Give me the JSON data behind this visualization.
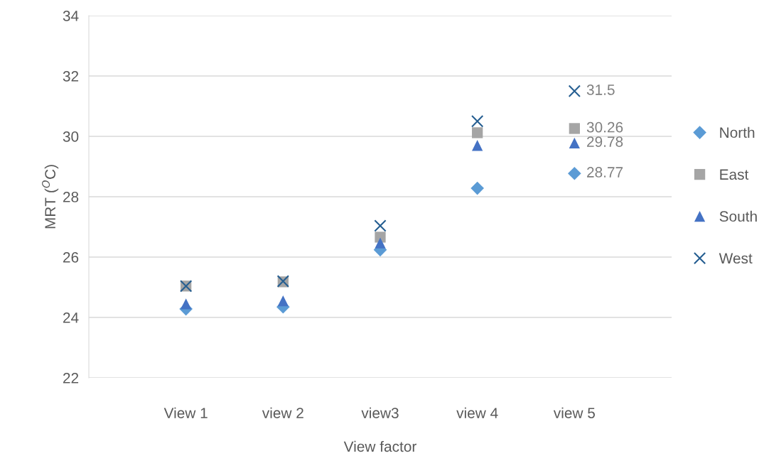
{
  "chart_data": {
    "type": "scatter",
    "xlabel": "View factor",
    "ylabel": "MRT ($^{O}$C)",
    "categories": [
      "View 1",
      "view 2",
      "view3",
      "view 4",
      "view 5"
    ],
    "series": [
      {
        "name": "North",
        "color": "#5b9bd5",
        "marker": "diamond",
        "values": [
          24.28,
          24.35,
          26.24,
          28.28,
          28.77
        ],
        "value_labels": [
          null,
          null,
          null,
          null,
          "28.77"
        ]
      },
      {
        "name": "East",
        "color": "#a5a5a5",
        "marker": "square",
        "values": [
          25.04,
          25.18,
          26.66,
          30.12,
          30.26
        ],
        "value_labels": [
          null,
          null,
          null,
          null,
          "30.26"
        ]
      },
      {
        "name": "South",
        "color": "#4472c4",
        "marker": "triangle",
        "values": [
          24.45,
          24.55,
          26.47,
          29.7,
          29.78
        ],
        "value_labels": [
          null,
          null,
          null,
          null,
          "29.78"
        ]
      },
      {
        "name": "West",
        "color": "#255e91",
        "marker": "cross",
        "values": [
          25.04,
          25.2,
          27.04,
          30.5,
          31.5
        ],
        "value_labels": [
          null,
          null,
          null,
          null,
          "31.5"
        ]
      }
    ],
    "ylim": [
      22,
      34
    ],
    "yticks": [
      22,
      24,
      26,
      28,
      30,
      32,
      34
    ],
    "grid": "y",
    "legend": "right"
  }
}
